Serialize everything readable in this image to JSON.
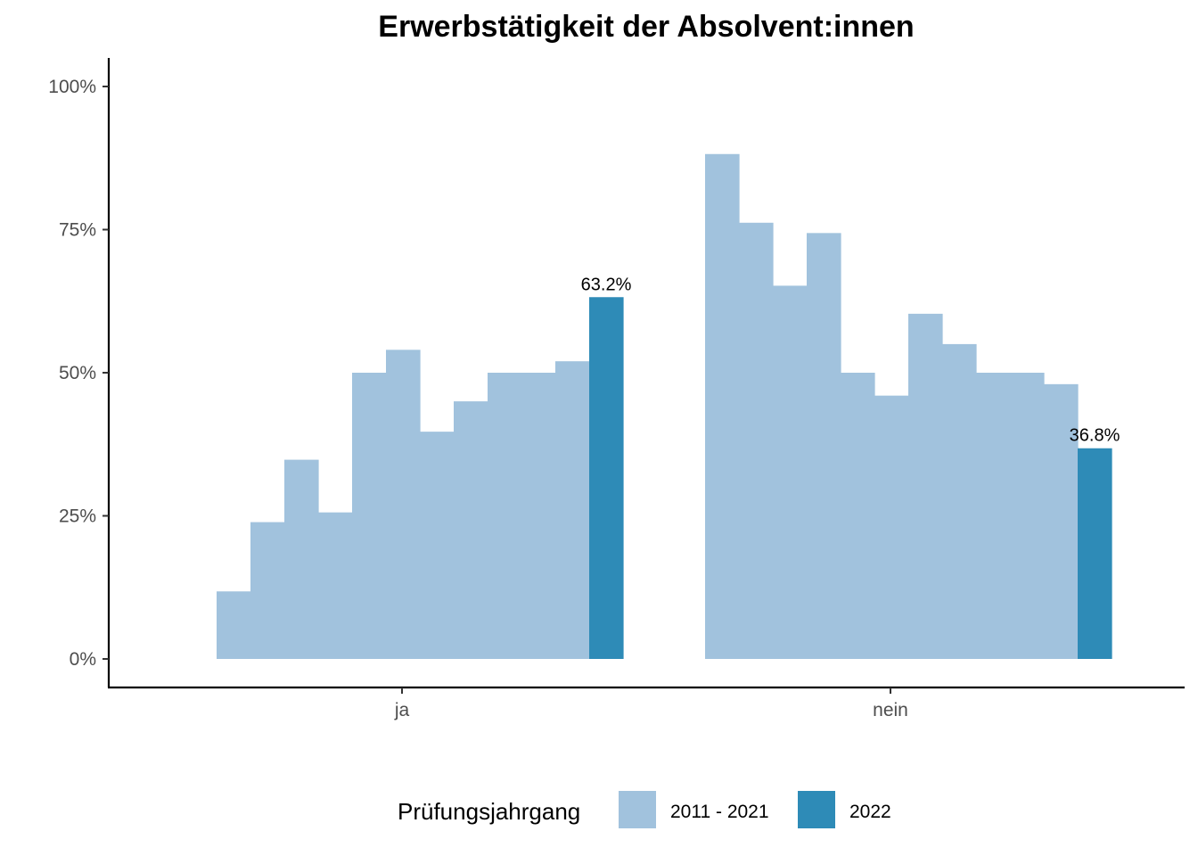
{
  "chart_data": {
    "type": "bar",
    "title": "Erwerbstätigkeit der Absolvent:innen",
    "categories": [
      "ja",
      "nein"
    ],
    "yticks": [
      "0%",
      "25%",
      "50%",
      "75%",
      "100%"
    ],
    "ylim": [
      0,
      1
    ],
    "series": [
      {
        "name": "2011 - 2021",
        "color": "#a1c2dd",
        "values_by_category": {
          "ja": [
            0.118,
            0.239,
            0.348,
            0.256,
            0.5,
            0.54,
            0.397,
            0.45,
            0.5,
            0.5,
            0.52
          ],
          "nein": [
            0.882,
            0.762,
            0.652,
            0.744,
            0.5,
            0.46,
            0.603,
            0.55,
            0.5,
            0.5,
            0.48
          ]
        }
      },
      {
        "name": "2022",
        "color": "#2e8bb7",
        "values_by_category": {
          "ja": [
            0.632
          ],
          "nein": [
            0.368
          ]
        },
        "data_labels": {
          "ja": "63.2%",
          "nein": "36.8%"
        }
      }
    ],
    "legend": {
      "title": "Prüfungsjahrgang",
      "position": "bottom",
      "items": [
        "2011 - 2021",
        "2022"
      ]
    }
  }
}
